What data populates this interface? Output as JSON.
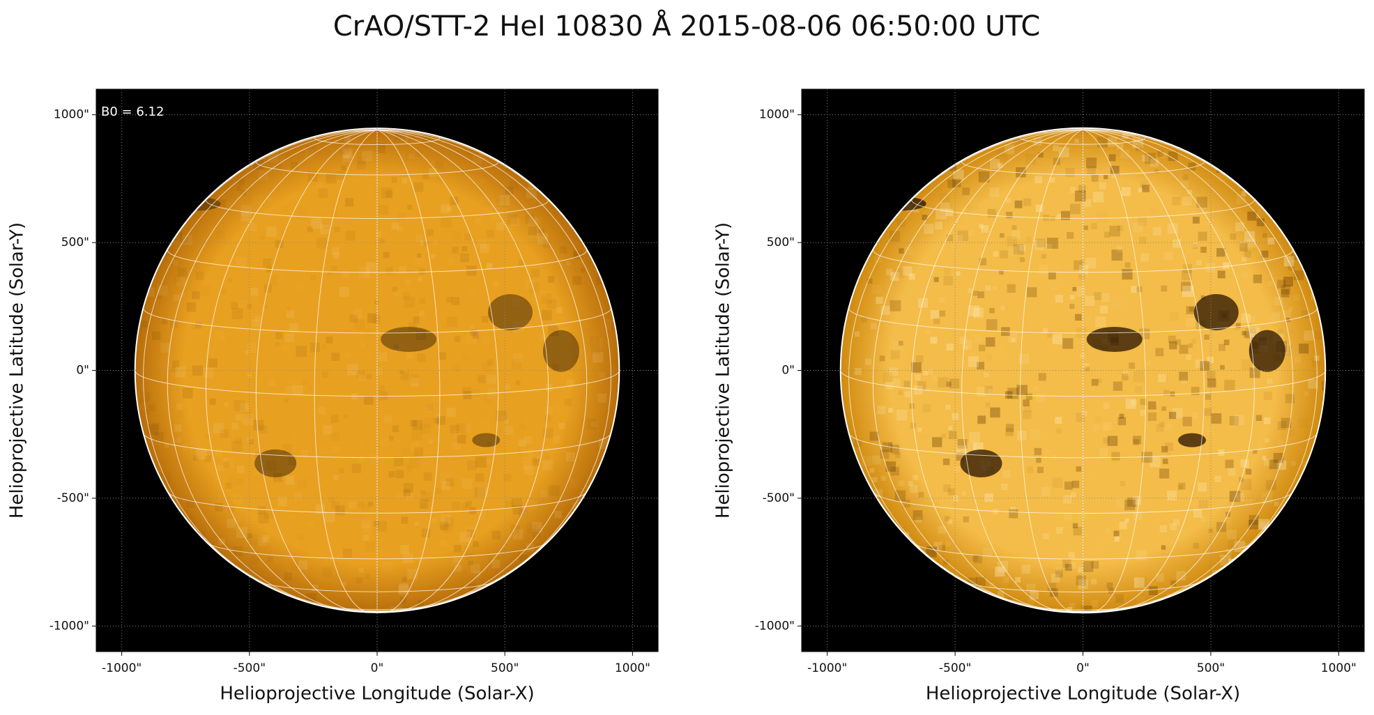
{
  "title": "CrAO/STT-2 HeI 10830 Å 2015-08-06 06:50:00 UTC",
  "chart_data": [
    {
      "type": "image",
      "xlabel": "Helioprojective Longitude (Solar-X)",
      "ylabel": "Helioprojective Latitude (Solar-Y)",
      "annotation": "B0 = 6.12",
      "xlim": [
        -1100,
        1100
      ],
      "ylim": [
        -1100,
        1100
      ],
      "xticks": [
        {
          "value": -1000,
          "label": "-1000\""
        },
        {
          "value": -500,
          "label": "-500\""
        },
        {
          "value": 0,
          "label": "0\""
        },
        {
          "value": 500,
          "label": "500\""
        },
        {
          "value": 1000,
          "label": "1000\""
        }
      ],
      "yticks": [
        {
          "value": -1000,
          "label": "-1000\""
        },
        {
          "value": -500,
          "label": "-500\""
        },
        {
          "value": 0,
          "label": "0\""
        },
        {
          "value": 500,
          "label": "500\""
        },
        {
          "value": 1000,
          "label": "1000\""
        }
      ],
      "grid": true,
      "disk_radius": 948,
      "colors": [
        "#e8a020",
        "#b86e0a"
      ]
    },
    {
      "type": "image",
      "xlabel": "Helioprojective Longitude (Solar-X)",
      "ylabel": "Helioprojective Latitude (Solar-Y)",
      "xlim": [
        -1100,
        1100
      ],
      "ylim": [
        -1100,
        1100
      ],
      "xticks": [
        {
          "value": -1000,
          "label": "-1000\""
        },
        {
          "value": -500,
          "label": "-500\""
        },
        {
          "value": 0,
          "label": "0\""
        },
        {
          "value": 500,
          "label": "500\""
        },
        {
          "value": 1000,
          "label": "1000\""
        }
      ],
      "yticks": [
        {
          "value": -1000,
          "label": "-1000\""
        },
        {
          "value": -500,
          "label": "-500\""
        },
        {
          "value": 0,
          "label": "0\""
        },
        {
          "value": 500,
          "label": "500\""
        },
        {
          "value": 1000,
          "label": "1000\""
        }
      ],
      "grid": true,
      "disk_radius": 948,
      "colors": [
        "#f4bc48",
        "#d08a10"
      ]
    }
  ]
}
